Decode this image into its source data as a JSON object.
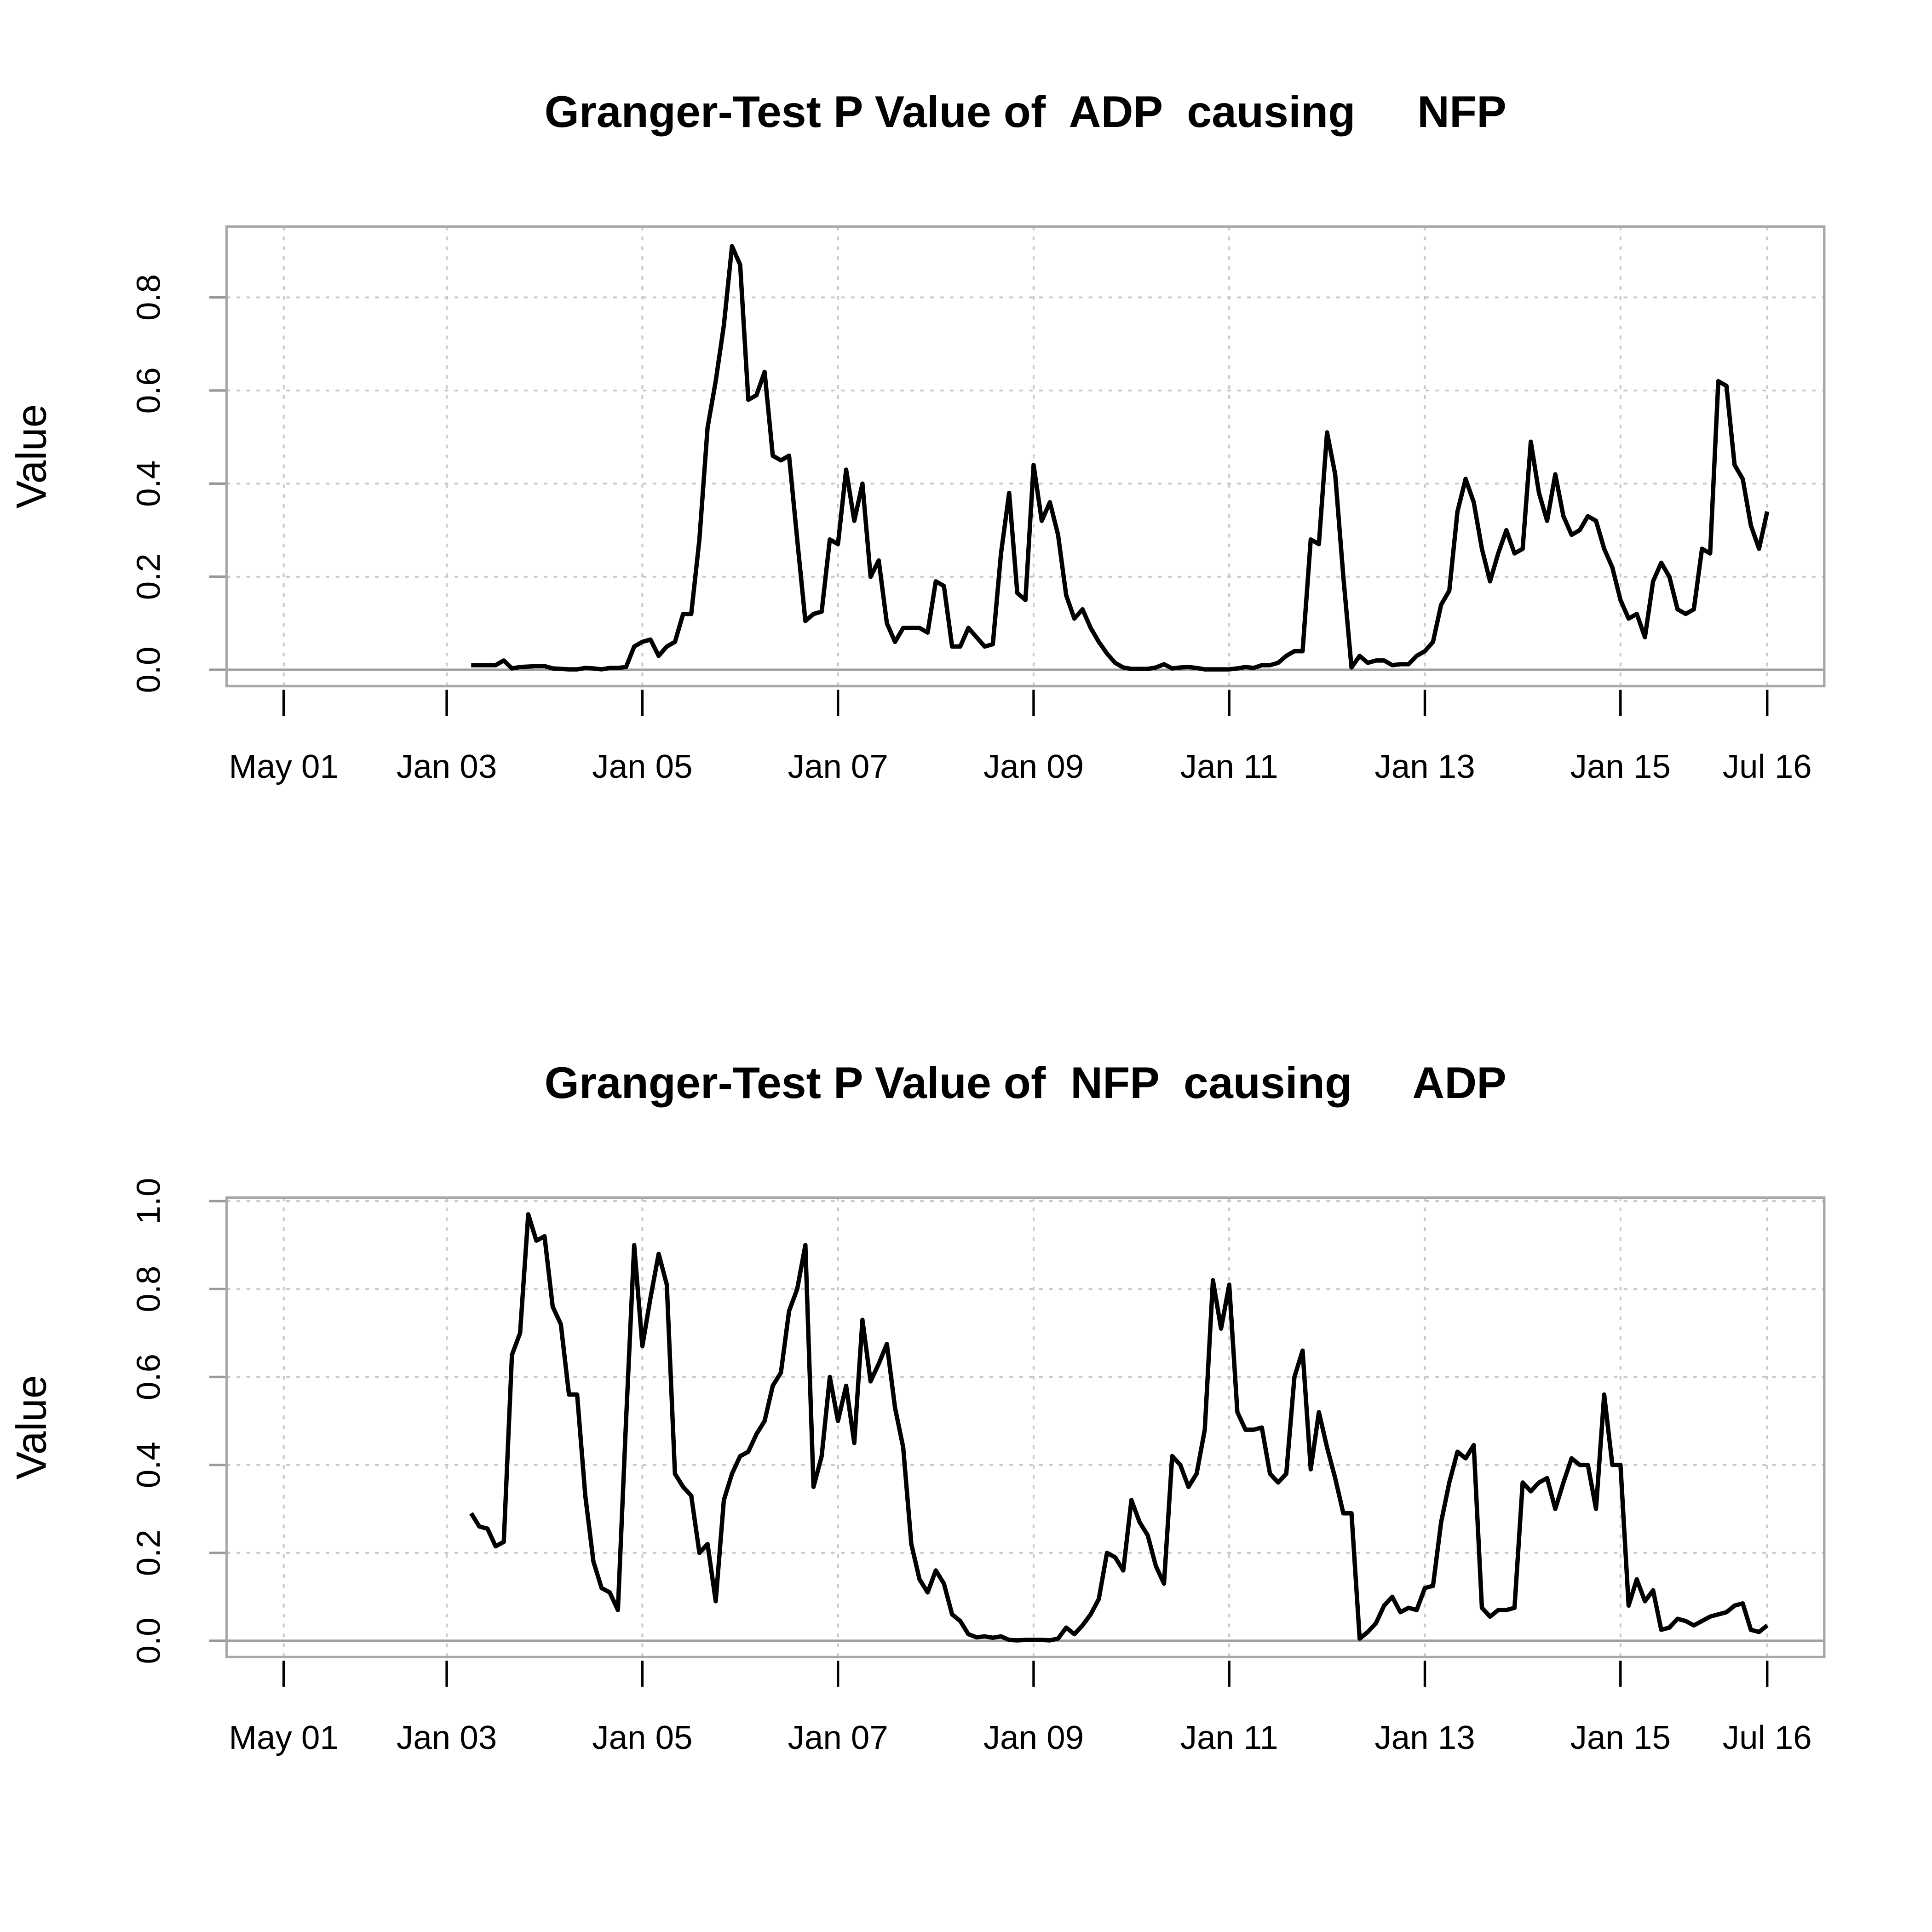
{
  "chart_data": [
    {
      "type": "line",
      "title": "Granger-Test P Value of  ADP  causing     NFP",
      "y_label": "Value",
      "x": [
        "2003-04",
        "2003-05",
        "2003-06",
        "2003-07",
        "2003-08",
        "2003-09",
        "2003-10",
        "2003-11",
        "2003-12",
        "2004-01",
        "2004-02",
        "2004-03",
        "2004-04",
        "2004-05",
        "2004-06",
        "2004-07",
        "2004-08",
        "2004-09",
        "2004-10",
        "2004-11",
        "2004-12",
        "2005-01",
        "2005-02",
        "2005-03",
        "2005-04",
        "2005-05",
        "2005-06",
        "2005-07",
        "2005-08",
        "2005-09",
        "2005-10",
        "2005-11",
        "2005-12",
        "2006-01",
        "2006-02",
        "2006-03",
        "2006-04",
        "2006-05",
        "2006-06",
        "2006-07",
        "2006-08",
        "2006-09",
        "2006-10",
        "2006-11",
        "2006-12",
        "2007-01",
        "2007-02",
        "2007-03",
        "2007-04",
        "2007-05",
        "2007-06",
        "2007-07",
        "2007-08",
        "2007-09",
        "2007-10",
        "2007-11",
        "2007-12",
        "2008-01",
        "2008-02",
        "2008-03",
        "2008-04",
        "2008-05",
        "2008-06",
        "2008-07",
        "2008-08",
        "2008-09",
        "2008-10",
        "2008-11",
        "2008-12",
        "2009-01",
        "2009-02",
        "2009-03",
        "2009-04",
        "2009-05",
        "2009-06",
        "2009-07",
        "2009-08",
        "2009-09",
        "2009-10",
        "2009-11",
        "2009-12",
        "2010-01",
        "2010-02",
        "2010-03",
        "2010-04",
        "2010-05",
        "2010-06",
        "2010-07",
        "2010-08",
        "2010-09",
        "2010-10",
        "2010-11",
        "2010-12",
        "2011-01",
        "2011-02",
        "2011-03",
        "2011-04",
        "2011-05",
        "2011-06",
        "2011-07",
        "2011-08",
        "2011-09",
        "2011-10",
        "2011-11",
        "2011-12",
        "2012-01",
        "2012-02",
        "2012-03",
        "2012-04",
        "2012-05",
        "2012-06",
        "2012-07",
        "2012-08",
        "2012-09",
        "2012-10",
        "2012-11",
        "2012-12",
        "2013-01",
        "2013-02",
        "2013-03",
        "2013-04",
        "2013-05",
        "2013-06",
        "2013-07",
        "2013-08",
        "2013-09",
        "2013-10",
        "2013-11",
        "2013-12",
        "2014-01",
        "2014-02",
        "2014-03",
        "2014-04",
        "2014-05",
        "2014-06",
        "2014-07",
        "2014-08",
        "2014-09",
        "2014-10",
        "2014-11",
        "2014-12",
        "2015-01",
        "2015-02",
        "2015-03",
        "2015-04",
        "2015-05",
        "2015-06",
        "2015-07",
        "2015-08",
        "2015-09",
        "2015-10",
        "2015-11",
        "2015-12",
        "2016-01",
        "2016-02",
        "2016-03",
        "2016-04",
        "2016-05",
        "2016-06",
        "2016-07"
      ],
      "series": [
        {
          "color": "#000000",
          "values": [
            0.01,
            0.01,
            0.01,
            0.01,
            0.02,
            0.003,
            0.006,
            0.007,
            0.008,
            0.008,
            0.003,
            0.002,
            0.001,
            0.001,
            0.004,
            0.003,
            0.001,
            0.004,
            0.004,
            0.006,
            0.05,
            0.06,
            0.065,
            0.03,
            0.05,
            0.06,
            0.12,
            0.12,
            0.28,
            0.52,
            0.62,
            0.74,
            0.91,
            0.87,
            0.58,
            0.59,
            0.64,
            0.46,
            0.45,
            0.46,
            0.28,
            0.105,
            0.12,
            0.125,
            0.28,
            0.27,
            0.43,
            0.32,
            0.4,
            0.2,
            0.235,
            0.1,
            0.06,
            0.09,
            0.09,
            0.09,
            0.08,
            0.19,
            0.18,
            0.05,
            0.05,
            0.09,
            0.07,
            0.05,
            0.055,
            0.25,
            0.38,
            0.165,
            0.15,
            0.44,
            0.32,
            0.36,
            0.29,
            0.16,
            0.11,
            0.13,
            0.09,
            0.06,
            0.035,
            0.015,
            0.005,
            0.002,
            0.002,
            0.002,
            0.005,
            0.012,
            0.003,
            0.005,
            0.006,
            0.004,
            0.001,
            0.001,
            0.001,
            0.001,
            0.003,
            0.006,
            0.004,
            0.01,
            0.01,
            0.015,
            0.03,
            0.04,
            0.04,
            0.28,
            0.27,
            0.51,
            0.42,
            0.2,
            0.005,
            0.03,
            0.015,
            0.02,
            0.02,
            0.01,
            0.012,
            0.012,
            0.03,
            0.04,
            0.06,
            0.14,
            0.17,
            0.34,
            0.41,
            0.36,
            0.26,
            0.19,
            0.25,
            0.3,
            0.25,
            0.26,
            0.49,
            0.38,
            0.32,
            0.42,
            0.33,
            0.29,
            0.3,
            0.33,
            0.32,
            0.26,
            0.22,
            0.15,
            0.11,
            0.12,
            0.07,
            0.19,
            0.23,
            0.2,
            0.13,
            0.12,
            0.13,
            0.26,
            0.25,
            0.62,
            0.61,
            0.44,
            0.41,
            0.31,
            0.26,
            0.34
          ]
        }
      ],
      "xlim": [
        "2000-10",
        "2017-02"
      ],
      "xticks": [
        {
          "value": "2001-05",
          "label": "May 01"
        },
        {
          "value": "2003-01",
          "label": "Jan 03"
        },
        {
          "value": "2005-01",
          "label": "Jan 05"
        },
        {
          "value": "2007-01",
          "label": "Jan 07"
        },
        {
          "value": "2009-01",
          "label": "Jan 09"
        },
        {
          "value": "2011-01",
          "label": "Jan 11"
        },
        {
          "value": "2013-01",
          "label": "Jan 13"
        },
        {
          "value": "2015-01",
          "label": "Jan 15"
        },
        {
          "value": "2016-07",
          "label": "Jul 16"
        }
      ],
      "ylim": [
        -0.035,
        0.952
      ],
      "yticks": [
        {
          "value": 0,
          "label": "0.0"
        },
        0.2,
        0.4,
        0.6,
        0.8
      ],
      "grid": true,
      "hline": 0
    },
    {
      "type": "line",
      "title": "Granger-Test P Value of  NFP  causing     ADP",
      "y_label": "Value",
      "x": [
        "2003-04",
        "2003-05",
        "2003-06",
        "2003-07",
        "2003-08",
        "2003-09",
        "2003-10",
        "2003-11",
        "2003-12",
        "2004-01",
        "2004-02",
        "2004-03",
        "2004-04",
        "2004-05",
        "2004-06",
        "2004-07",
        "2004-08",
        "2004-09",
        "2004-10",
        "2004-11",
        "2004-12",
        "2005-01",
        "2005-02",
        "2005-03",
        "2005-04",
        "2005-05",
        "2005-06",
        "2005-07",
        "2005-08",
        "2005-09",
        "2005-10",
        "2005-11",
        "2005-12",
        "2006-01",
        "2006-02",
        "2006-03",
        "2006-04",
        "2006-05",
        "2006-06",
        "2006-07",
        "2006-08",
        "2006-09",
        "2006-10",
        "2006-11",
        "2006-12",
        "2007-01",
        "2007-02",
        "2007-03",
        "2007-04",
        "2007-05",
        "2007-06",
        "2007-07",
        "2007-08",
        "2007-09",
        "2007-10",
        "2007-11",
        "2007-12",
        "2008-01",
        "2008-02",
        "2008-03",
        "2008-04",
        "2008-05",
        "2008-06",
        "2008-07",
        "2008-08",
        "2008-09",
        "2008-10",
        "2008-11",
        "2008-12",
        "2009-01",
        "2009-02",
        "2009-03",
        "2009-04",
        "2009-05",
        "2009-06",
        "2009-07",
        "2009-08",
        "2009-09",
        "2009-10",
        "2009-11",
        "2009-12",
        "2010-01",
        "2010-02",
        "2010-03",
        "2010-04",
        "2010-05",
        "2010-06",
        "2010-07",
        "2010-08",
        "2010-09",
        "2010-10",
        "2010-11",
        "2010-12",
        "2011-01",
        "2011-02",
        "2011-03",
        "2011-04",
        "2011-05",
        "2011-06",
        "2011-07",
        "2011-08",
        "2011-09",
        "2011-10",
        "2011-11",
        "2011-12",
        "2012-01",
        "2012-02",
        "2012-03",
        "2012-04",
        "2012-05",
        "2012-06",
        "2012-07",
        "2012-08",
        "2012-09",
        "2012-10",
        "2012-11",
        "2012-12",
        "2013-01",
        "2013-02",
        "2013-03",
        "2013-04",
        "2013-05",
        "2013-06",
        "2013-07",
        "2013-08",
        "2013-09",
        "2013-10",
        "2013-11",
        "2013-12",
        "2014-01",
        "2014-02",
        "2014-03",
        "2014-04",
        "2014-05",
        "2014-06",
        "2014-07",
        "2014-08",
        "2014-09",
        "2014-10",
        "2014-11",
        "2014-12",
        "2015-01",
        "2015-02",
        "2015-03",
        "2015-04",
        "2015-05",
        "2015-06",
        "2015-07",
        "2015-08",
        "2015-09",
        "2015-10",
        "2015-11",
        "2015-12",
        "2016-01",
        "2016-02",
        "2016-03",
        "2016-04",
        "2016-05",
        "2016-06",
        "2016-07"
      ],
      "series": [
        {
          "color": "#000000",
          "values": [
            0.29,
            0.26,
            0.255,
            0.215,
            0.225,
            0.65,
            0.7,
            0.97,
            0.91,
            0.92,
            0.76,
            0.72,
            0.56,
            0.56,
            0.33,
            0.18,
            0.12,
            0.11,
            0.07,
            0.5,
            0.9,
            0.67,
            0.78,
            0.88,
            0.81,
            0.38,
            0.35,
            0.33,
            0.2,
            0.22,
            0.09,
            0.32,
            0.38,
            0.42,
            0.43,
            0.47,
            0.5,
            0.58,
            0.61,
            0.75,
            0.8,
            0.9,
            0.35,
            0.42,
            0.6,
            0.5,
            0.58,
            0.45,
            0.73,
            0.59,
            0.63,
            0.675,
            0.53,
            0.44,
            0.22,
            0.14,
            0.11,
            0.16,
            0.13,
            0.06,
            0.045,
            0.015,
            0.008,
            0.01,
            0.007,
            0.01,
            0.002,
            0.001,
            0.002,
            0.002,
            0.002,
            0.001,
            0.005,
            0.03,
            0.015,
            0.035,
            0.06,
            0.095,
            0.2,
            0.19,
            0.16,
            0.32,
            0.27,
            0.24,
            0.17,
            0.13,
            0.42,
            0.4,
            0.35,
            0.38,
            0.48,
            0.82,
            0.71,
            0.81,
            0.52,
            0.48,
            0.48,
            0.485,
            0.38,
            0.36,
            0.38,
            0.6,
            0.66,
            0.39,
            0.52,
            0.44,
            0.37,
            0.29,
            0.29,
            0.005,
            0.02,
            0.04,
            0.08,
            0.1,
            0.065,
            0.075,
            0.07,
            0.12,
            0.125,
            0.27,
            0.36,
            0.43,
            0.415,
            0.445,
            0.075,
            0.055,
            0.07,
            0.07,
            0.075,
            0.36,
            0.34,
            0.36,
            0.37,
            0.3,
            0.36,
            0.415,
            0.4,
            0.4,
            0.3,
            0.56,
            0.4,
            0.4,
            0.08,
            0.14,
            0.09,
            0.115,
            0.025,
            0.03,
            0.05,
            0.045,
            0.035,
            0.045,
            0.055,
            0.06,
            0.065,
            0.08,
            0.085,
            0.025,
            0.02,
            0.035
          ]
        }
      ],
      "xlim": [
        "2000-10",
        "2017-02"
      ],
      "xticks": [
        {
          "value": "2001-05",
          "label": "May 01"
        },
        {
          "value": "2003-01",
          "label": "Jan 03"
        },
        {
          "value": "2005-01",
          "label": "Jan 05"
        },
        {
          "value": "2007-01",
          "label": "Jan 07"
        },
        {
          "value": "2009-01",
          "label": "Jan 09"
        },
        {
          "value": "2011-01",
          "label": "Jan 11"
        },
        {
          "value": "2013-01",
          "label": "Jan 13"
        },
        {
          "value": "2015-01",
          "label": "Jan 15"
        },
        {
          "value": "2016-07",
          "label": "Jul 16"
        }
      ],
      "ylim": [
        -0.037,
        1.008
      ],
      "yticks": [
        {
          "value": 0,
          "label": "0.0"
        },
        0.2,
        0.4,
        0.6,
        0.8,
        {
          "value": 1,
          "label": "1.0"
        }
      ],
      "grid": true,
      "hline": 0
    }
  ]
}
